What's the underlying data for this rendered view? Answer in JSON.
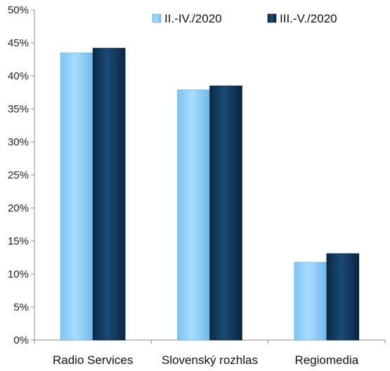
{
  "chart_data": {
    "type": "bar",
    "categories": [
      "Radio Services",
      "Slovenský rozhlas",
      "Regiomedia"
    ],
    "series": [
      {
        "name": "II.-IV./2020",
        "values": [
          43.5,
          37.9,
          11.8
        ],
        "color": "#99d3fb"
      },
      {
        "name": "III.-V./2020",
        "values": [
          44.2,
          38.5,
          13.1
        ],
        "color": "#13385b"
      }
    ],
    "ylim": [
      0,
      50
    ],
    "yticks": [
      "0%",
      "5%",
      "10%",
      "15%",
      "20%",
      "25%",
      "30%",
      "35%",
      "40%",
      "45%",
      "50%"
    ],
    "legend_position": "top-right",
    "grid": false
  }
}
